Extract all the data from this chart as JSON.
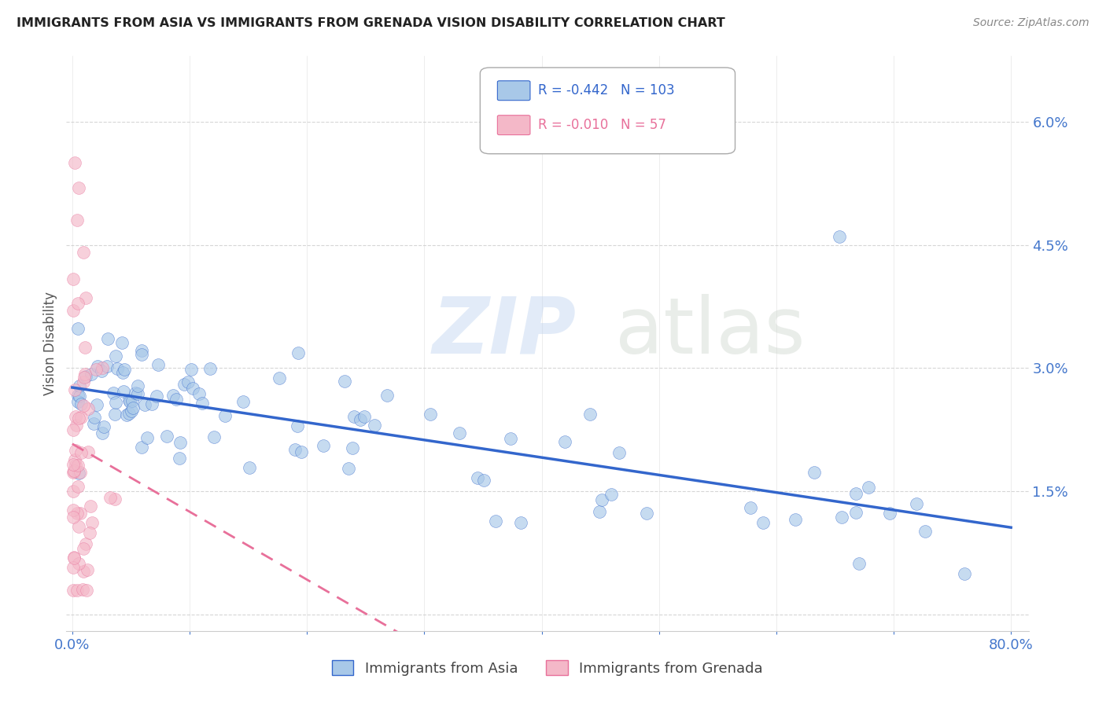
{
  "title": "IMMIGRANTS FROM ASIA VS IMMIGRANTS FROM GRENADA VISION DISABILITY CORRELATION CHART",
  "source": "Source: ZipAtlas.com",
  "ylabel": "Vision Disability",
  "legend_label_asia": "Immigrants from Asia",
  "legend_label_grenada": "Immigrants from Grenada",
  "R_asia": -0.442,
  "N_asia": 103,
  "R_grenada": -0.01,
  "N_grenada": 57,
  "color_asia": "#a8c8e8",
  "color_grenada": "#f4b8c8",
  "color_asia_line": "#3366cc",
  "color_grenada_line": "#e8709a",
  "watermark_zip": "ZIP",
  "watermark_atlas": "atlas",
  "background_color": "#ffffff",
  "grid_color": "#cccccc",
  "tick_color": "#4477cc",
  "title_color": "#222222",
  "axis_label_color": "#555555"
}
